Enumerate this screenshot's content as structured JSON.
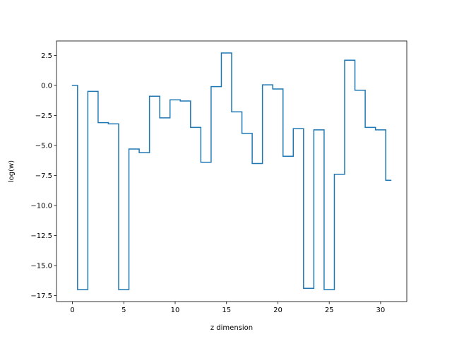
{
  "chart_data": {
    "type": "line",
    "drawstyle": "steps-mid",
    "xlabel": "z dimension",
    "ylabel": "log(w)",
    "xlim": [
      -1.55,
      32.55
    ],
    "ylim": [
      -18.0,
      3.7
    ],
    "xticks": [
      0,
      5,
      10,
      15,
      20,
      25,
      30
    ],
    "xtick_labels": [
      "0",
      "5",
      "10",
      "15",
      "20",
      "25",
      "30"
    ],
    "yticks": [
      2.5,
      0.0,
      -2.5,
      -5.0,
      -7.5,
      -10.0,
      -12.5,
      -15.0,
      -17.5
    ],
    "ytick_labels": [
      "2.5",
      "0.0",
      "−2.5",
      "−5.0",
      "−7.5",
      "−10.0",
      "−12.5",
      "−15.0",
      "−17.5"
    ],
    "grid": false,
    "series": [
      {
        "color": "#1f77b4",
        "x": [
          0,
          1,
          2,
          3,
          4,
          5,
          6,
          7,
          8,
          9,
          10,
          11,
          12,
          13,
          14,
          15,
          16,
          17,
          18,
          19,
          20,
          21,
          22,
          23,
          24,
          25,
          26,
          27,
          28,
          29,
          30,
          31
        ],
        "y": [
          0.0,
          -17.0,
          -0.5,
          -3.1,
          -3.2,
          -17.0,
          -5.3,
          -5.6,
          -0.9,
          -2.7,
          -1.2,
          -1.3,
          -3.5,
          -6.4,
          -0.1,
          2.7,
          -2.2,
          -4.0,
          -6.5,
          0.05,
          -0.3,
          -5.9,
          -3.6,
          -16.9,
          -3.7,
          -17.0,
          -7.4,
          2.1,
          -0.4,
          -3.5,
          -3.7,
          -7.9
        ]
      }
    ]
  }
}
